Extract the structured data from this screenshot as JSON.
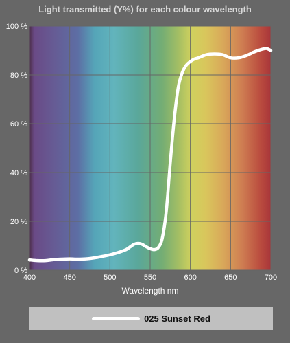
{
  "chart_data": {
    "type": "line",
    "title": "Light transmitted (Y%) for each colour wavelength",
    "xlabel": "Wavelength nm",
    "ylabel": "",
    "xlim": [
      400,
      700
    ],
    "ylim": [
      0,
      100
    ],
    "xticks": [
      400,
      450,
      500,
      550,
      600,
      650,
      700
    ],
    "yticks": [
      0,
      20,
      40,
      60,
      80,
      100
    ],
    "ytick_labels": [
      "0 %",
      "20 %",
      "40 %",
      "60 %",
      "80 %",
      "100 %"
    ],
    "grid": true,
    "legend_position": "bottom",
    "background": "visible-spectrum gradient",
    "series": [
      {
        "name": "025 Sunset Red",
        "color": "#ffffff",
        "x": [
          400,
          410,
          420,
          430,
          440,
          450,
          460,
          470,
          480,
          490,
          500,
          510,
          520,
          525,
          530,
          535,
          540,
          545,
          550,
          555,
          560,
          565,
          570,
          575,
          580,
          585,
          590,
          595,
          600,
          605,
          610,
          620,
          630,
          640,
          650,
          660,
          670,
          680,
          690,
          695,
          700
        ],
        "y": [
          4.2,
          3.9,
          3.9,
          4.3,
          4.5,
          4.6,
          4.5,
          4.6,
          5.0,
          5.6,
          6.3,
          7.2,
          8.4,
          9.5,
          10.6,
          11.0,
          10.6,
          9.6,
          8.8,
          8.4,
          9.2,
          13.0,
          24.0,
          44.0,
          62.0,
          75.0,
          81.0,
          84.0,
          85.5,
          86.5,
          87.0,
          88.3,
          88.6,
          88.3,
          87.0,
          87.0,
          88.0,
          89.5,
          90.6,
          90.8,
          90.0
        ]
      }
    ]
  },
  "legend": {
    "label": "025 Sunset Red"
  },
  "colors": {
    "page_background": "#676767",
    "grid": "#666666",
    "legend_background": "#c0c0c0",
    "line": "#ffffff"
  }
}
